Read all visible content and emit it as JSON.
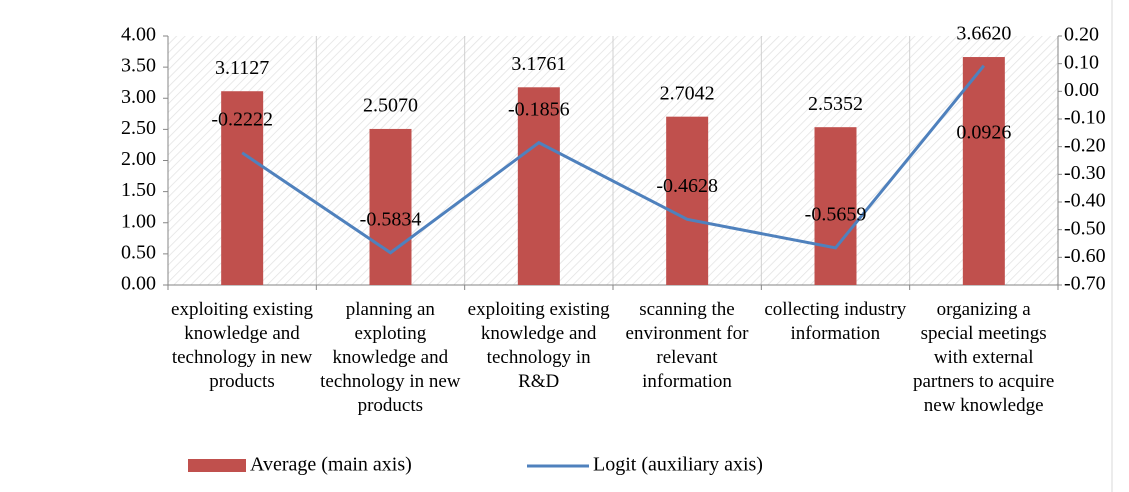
{
  "chart_data": {
    "type": "bar_line",
    "categories": [
      "exploiting existing knowledge and technology in new products",
      "planning an exploting knowledge and technology in new products",
      "exploiting existing knowledge and technology in R&D",
      "scanning the environment for relevant information",
      "collecting industry information",
      "organizing a special meetings with external partners to acquire new knowledge"
    ],
    "series": [
      {
        "name": "Average (main axis)",
        "type": "bar",
        "color": "#c0504d",
        "values": [
          3.1127,
          2.507,
          3.1761,
          2.7042,
          2.5352,
          3.662
        ],
        "value_labels": [
          "3.1127",
          "2.5070",
          "3.1761",
          "2.7042",
          "2.5352",
          "3.6620"
        ]
      },
      {
        "name": "Logit (auxiliary axis)",
        "type": "line",
        "axis": "y2",
        "color": "#4f81bd",
        "values": [
          -0.2222,
          -0.5834,
          -0.1856,
          -0.4628,
          -0.5659,
          0.0926
        ],
        "value_labels": [
          "-0.2222",
          "-0.5834",
          "-0.1856",
          "-0.4628",
          "-0.5659",
          "0.0926"
        ]
      }
    ],
    "ylim": [
      0,
      4
    ],
    "yticks": [
      {
        "value": 0,
        "label": "0.00"
      },
      {
        "value": 0.5,
        "label": "0.50"
      },
      {
        "value": 1,
        "label": "1.00"
      },
      {
        "value": 1.5,
        "label": "1.50"
      },
      {
        "value": 2,
        "label": "2.00"
      },
      {
        "value": 2.5,
        "label": "2.50"
      },
      {
        "value": 3,
        "label": "3.00"
      },
      {
        "value": 3.5,
        "label": "3.50"
      },
      {
        "value": 4,
        "label": "4.00"
      }
    ],
    "y2lim": [
      -0.7,
      0.2
    ],
    "y2ticks": [
      {
        "value": -0.7,
        "label": "-0.70"
      },
      {
        "value": -0.6,
        "label": "-0.60"
      },
      {
        "value": -0.5,
        "label": "-0.50"
      },
      {
        "value": -0.4,
        "label": "-0.40"
      },
      {
        "value": -0.3,
        "label": "-0.30"
      },
      {
        "value": -0.2,
        "label": "-0.20"
      },
      {
        "value": -0.1,
        "label": "-0.10"
      },
      {
        "value": 0,
        "label": "0.00"
      },
      {
        "value": 0.1,
        "label": "0.10"
      },
      {
        "value": 0.2,
        "label": "0.20"
      }
    ],
    "legend": "bottom"
  }
}
